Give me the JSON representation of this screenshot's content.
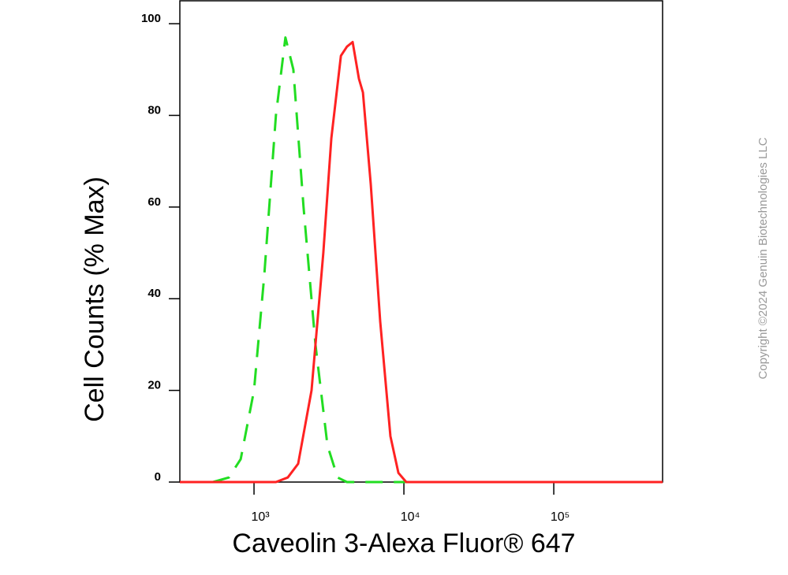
{
  "chart_data": {
    "type": "line",
    "x_label": "Caveolin 3-Alexa Fluor® 647",
    "y_label": "Cell Counts (% Max)",
    "copyright": "Copyright ©2024 Genuin Biotechnologies LLC",
    "x_scale": "log",
    "xlim": [
      320,
      532000
    ],
    "xticks": [
      {
        "value": 1000,
        "label": "10³"
      },
      {
        "value": 10000,
        "label": "10⁴"
      },
      {
        "value": 100000,
        "label": "10⁵"
      }
    ],
    "ylim": [
      0,
      105
    ],
    "yticks": [
      0,
      20,
      40,
      60,
      80,
      100
    ],
    "series": [
      {
        "color": "#22dd22",
        "dash": true,
        "x": [
          532,
          680,
          815,
          1000,
          1170,
          1400,
          1620,
          1830,
          2140,
          2570,
          3090,
          3610,
          4170,
          532000
        ],
        "values": [
          0,
          1,
          5,
          20,
          45,
          80,
          97,
          90,
          60,
          30,
          8,
          1,
          0,
          0
        ]
      },
      {
        "color": "#ff2222",
        "dash": false,
        "x": [
          320,
          1400,
          1680,
          1970,
          2420,
          2900,
          3280,
          3800,
          4170,
          4550,
          5010,
          5330,
          6010,
          6950,
          8130,
          9190,
          10370,
          532000
        ],
        "values": [
          0,
          0,
          1,
          4,
          20,
          50,
          75,
          93,
          95,
          96,
          88,
          85,
          65,
          35,
          10,
          2,
          0,
          0
        ]
      }
    ]
  }
}
